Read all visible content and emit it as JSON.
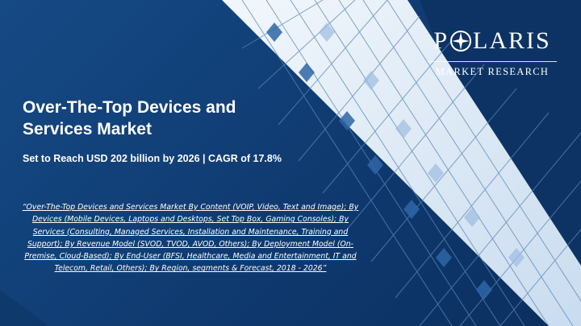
{
  "logo": {
    "brand_pre": "P",
    "brand_post": "LARIS",
    "tagline": "MARKET RESEARCH"
  },
  "title_line1": "Over-The-Top Devices and",
  "title_line2": "Services Market",
  "subtitle": "Set to Reach  USD 202 billion by 2026 | CAGR of  17.8%",
  "description": "“Over-The-Top Devices and Services Market By Content (VOIP, Video, Text and Image); By Devices (Mobile Devices, Laptops and Desktops, Set Top Box, Gaming Consoles); By Services (Consulting, Managed Services, Installation and Maintenance, Training and Support); By Revenue Model (SVOD, TVOD, AVOD, Others); By Deployment Model (On-Premise, Cloud-Based); By End-User (BFSI, Healthcare, Media and Entertainment, IT and Telecom, Retail, Others); By Region, segments & Forecast, 2018 - 2026”",
  "colors": {
    "background": "#113a6e",
    "accent_light": "#dce8f4",
    "text": "#ffffff"
  }
}
